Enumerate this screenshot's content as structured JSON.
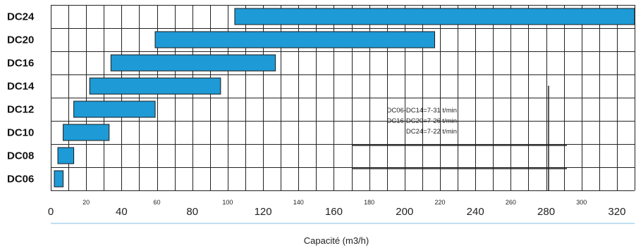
{
  "chart_data": {
    "type": "bar",
    "orientation": "horizontal-range",
    "categories": [
      "DC24",
      "DC20",
      "DC16",
      "DC14",
      "DC12",
      "DC10",
      "DC08",
      "DC06"
    ],
    "ranges": [
      {
        "name": "DC24",
        "start": 104,
        "end": 330
      },
      {
        "name": "DC20",
        "start": 59,
        "end": 217
      },
      {
        "name": "DC16",
        "start": 34,
        "end": 127
      },
      {
        "name": "DC14",
        "start": 22,
        "end": 96
      },
      {
        "name": "DC12",
        "start": 13,
        "end": 59
      },
      {
        "name": "DC10",
        "start": 7,
        "end": 33
      },
      {
        "name": "DC08",
        "start": 4,
        "end": 13
      },
      {
        "name": "DC06",
        "start": 2,
        "end": 7
      }
    ],
    "x_ticks": [
      {
        "value": 0,
        "label": "0",
        "size": "large"
      },
      {
        "value": 20,
        "label": "20",
        "size": "small"
      },
      {
        "value": 40,
        "label": "40",
        "size": "large"
      },
      {
        "value": 60,
        "label": "60",
        "size": "small"
      },
      {
        "value": 80,
        "label": "80",
        "size": "large"
      },
      {
        "value": 100,
        "label": "100",
        "size": "small"
      },
      {
        "value": 120,
        "label": "120",
        "size": "large"
      },
      {
        "value": 140,
        "label": "140",
        "size": "small"
      },
      {
        "value": 160,
        "label": "160",
        "size": "large"
      },
      {
        "value": 180,
        "label": "180",
        "size": "small"
      },
      {
        "value": 200,
        "label": "200",
        "size": "large"
      },
      {
        "value": 220,
        "label": "220",
        "size": "small"
      },
      {
        "value": 240,
        "label": "240",
        "size": "large"
      },
      {
        "value": 260,
        "label": "260",
        "size": "small"
      },
      {
        "value": 280,
        "label": "280",
        "size": "large"
      },
      {
        "value": 300,
        "label": "300",
        "size": "small"
      },
      {
        "value": 320,
        "label": "320",
        "size": "large"
      }
    ],
    "xlabel": "Capacité (m3/h)",
    "xlim": [
      0,
      330
    ],
    "grid": true,
    "annotations": [
      "DC06-DC14=7-31 t/min",
      "DC16-DC20=7-26 t/min",
      "DC24=7-22 t/min"
    ],
    "colors": {
      "bar": "#1e9ad6",
      "grid": "#222222",
      "axis_rule": "#7fbfe6"
    }
  }
}
